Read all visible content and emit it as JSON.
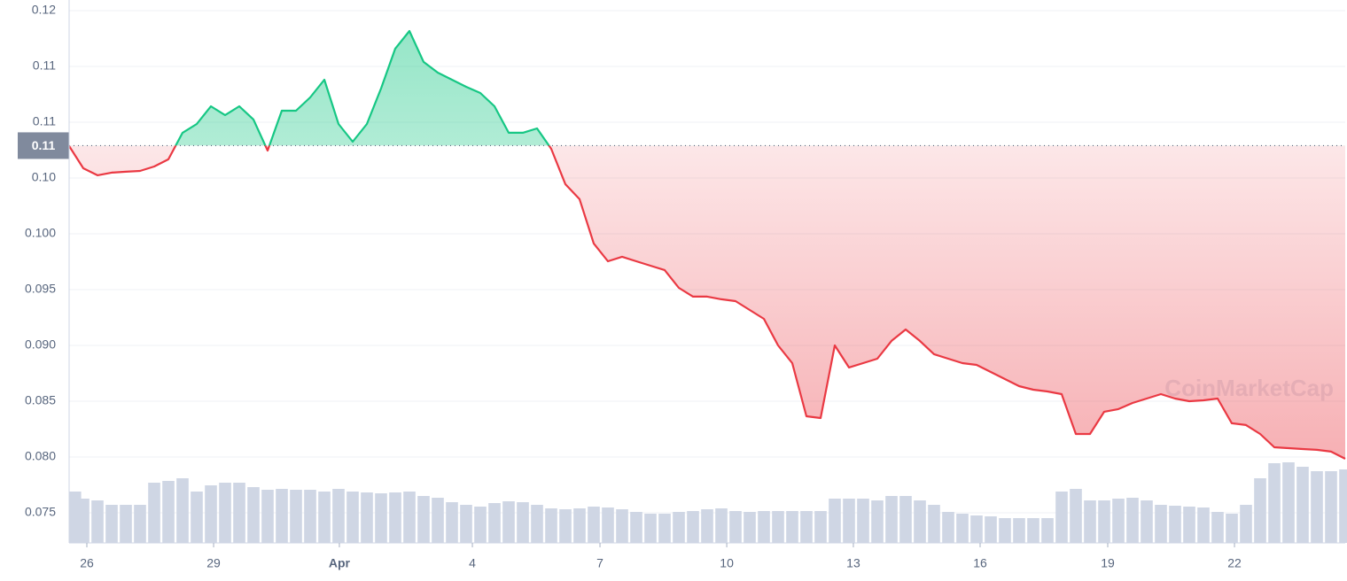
{
  "chart_data": {
    "type": "line",
    "watermark": "CoinMarketCap",
    "xlim": [
      0,
      90
    ],
    "xticks": [
      {
        "value": 1.25,
        "label": "26"
      },
      {
        "value": 10.19,
        "label": "29"
      },
      {
        "value": 19.06,
        "label": "Apr"
      },
      {
        "value": 28.44,
        "label": "4"
      },
      {
        "value": 37.44,
        "label": "7"
      },
      {
        "value": 46.38,
        "label": "10"
      },
      {
        "value": 55.31,
        "label": "13"
      },
      {
        "value": 64.25,
        "label": "16"
      },
      {
        "value": 73.25,
        "label": "19"
      },
      {
        "value": 82.19,
        "label": "22"
      }
    ],
    "ylim": [
      0.0723,
      0.12095
    ],
    "yticks": [
      0.12,
      {
        "value": 0.115,
        "label": "0.11"
      },
      0.11,
      {
        "value": 0.105,
        "label": "0.10"
      },
      {
        "value": 0.1,
        "label": "0.100"
      },
      0.095,
      {
        "value": 0.09,
        "label": "0.090"
      },
      0.085,
      {
        "value": 0.08,
        "label": "0.080"
      },
      0.075
    ],
    "y2lim": [
      0,
      613
    ],
    "grid": true,
    "baseline": {
      "value": 0.1079,
      "label": "0.11"
    },
    "colors": {
      "up": "#16c784",
      "down": "#ea3943",
      "volume": "#cfd6e4"
    },
    "series": [
      {
        "name": "Price",
        "values": [
          0.10786,
          0.10587,
          0.10524,
          0.10548,
          0.10556,
          0.10563,
          0.10603,
          0.10667,
          0.10905,
          0.10984,
          0.11143,
          0.11063,
          0.11143,
          0.11024,
          0.10746,
          0.11103,
          0.11103,
          0.11222,
          0.11381,
          0.10984,
          0.10825,
          0.10984,
          0.11302,
          0.11659,
          0.11817,
          0.1154,
          0.11444,
          0.11381,
          0.11317,
          0.11262,
          0.11143,
          0.10905,
          0.10905,
          0.10944,
          0.10762,
          0.10444,
          0.1031,
          0.09913,
          0.09754,
          0.09794,
          0.09754,
          0.09714,
          0.09675,
          0.09516,
          0.09437,
          0.09437,
          0.09413,
          0.09397,
          0.09317,
          0.09238,
          0.09,
          0.08841,
          0.08365,
          0.08349,
          0.09,
          0.08802,
          0.08841,
          0.08881,
          0.0904,
          0.09143,
          0.0904,
          0.08921,
          0.08881,
          0.08841,
          0.08825,
          0.08762,
          0.08698,
          0.08635,
          0.08603,
          0.08587,
          0.08563,
          0.08206,
          0.08206,
          0.08405,
          0.08429,
          0.08484,
          0.08524,
          0.08563,
          0.08524,
          0.085,
          0.08508,
          0.08524,
          0.08302,
          0.08286,
          0.08206,
          0.08087,
          0.08079,
          0.08071,
          0.08064,
          0.08048,
          0.07984
        ]
      },
      {
        "name": "Volume",
        "axis": "y2",
        "values": [
          58,
          50,
          48,
          43,
          43,
          43,
          68,
          70,
          73,
          58,
          65,
          68,
          68,
          63,
          60,
          61,
          60,
          60,
          58,
          61,
          58,
          57,
          56,
          57,
          58,
          53,
          51,
          46,
          43,
          41,
          45,
          47,
          46,
          43,
          39,
          38,
          39,
          41,
          40,
          38,
          35,
          33,
          33,
          35,
          36,
          38,
          39,
          36,
          35,
          36,
          36,
          36,
          36,
          36,
          50,
          50,
          50,
          48,
          53,
          53,
          48,
          43,
          35,
          33,
          31,
          30,
          28,
          28,
          28,
          28,
          58,
          61,
          48,
          48,
          50,
          51,
          48,
          43,
          42,
          41,
          40,
          35,
          33,
          43,
          73,
          90,
          91,
          86,
          81,
          81,
          83
        ]
      }
    ]
  }
}
